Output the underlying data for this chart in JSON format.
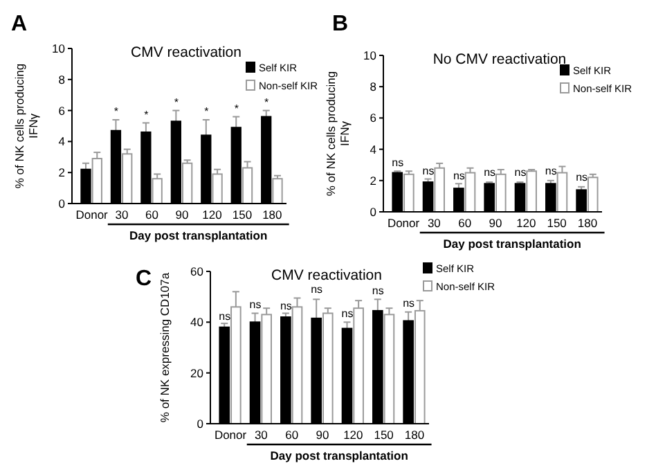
{
  "chart_data": [
    {
      "type": "bar",
      "title": "CMV  reactivation",
      "ylabel": "% of NK cells producing\nIFNγ",
      "xlabel": "Day post transplantation",
      "categories": [
        "Donor",
        "30",
        "60",
        "90",
        "120",
        "150",
        "180"
      ],
      "ylim": [
        0,
        10
      ],
      "yticks": [
        0,
        2,
        4,
        6,
        8,
        10
      ],
      "legend": "top right",
      "grid": false,
      "series": [
        {
          "name": "Self KIR",
          "color": "#000000",
          "values": [
            2.2,
            4.7,
            4.6,
            5.3,
            4.4,
            4.9,
            5.6
          ],
          "errors": [
            [
              2.2,
              2.6
            ],
            [
              4.7,
              5.4
            ],
            [
              4.6,
              5.2
            ],
            [
              5.3,
              6.0
            ],
            [
              4.4,
              5.4
            ],
            [
              4.9,
              5.6
            ],
            [
              5.6,
              6.0
            ]
          ]
        },
        {
          "name": "Non-self KIR",
          "color": "#ffffff",
          "values": [
            2.9,
            3.2,
            1.6,
            2.6,
            1.9,
            2.3,
            1.6
          ],
          "errors": [
            [
              2.9,
              3.3
            ],
            [
              3.2,
              3.5
            ],
            [
              1.6,
              1.9
            ],
            [
              2.6,
              2.8
            ],
            [
              1.9,
              2.2
            ],
            [
              2.3,
              2.7
            ],
            [
              1.6,
              1.8
            ]
          ]
        }
      ],
      "annotations": [
        "A",
        {
          "text": "*",
          "x": "30",
          "y": 5.7
        },
        {
          "text": "*",
          "x": "60",
          "y": 5.5
        },
        {
          "text": "*",
          "x": "90",
          "y": 6.3
        },
        {
          "text": "*",
          "x": "120",
          "y": 5.7
        },
        {
          "text": "*",
          "x": "150",
          "y": 5.9
        },
        {
          "text": "*",
          "x": "180",
          "y": 6.3
        }
      ]
    },
    {
      "type": "bar",
      "title": "No CMV  reactivation",
      "ylabel": "% of NK cells producing\nIFNγ",
      "xlabel": "Day post transplantation",
      "categories": [
        "Donor",
        "30",
        "60",
        "90",
        "120",
        "150",
        "180"
      ],
      "ylim": [
        0,
        10
      ],
      "yticks": [
        0,
        2,
        4,
        6,
        8,
        10
      ],
      "legend": "top right",
      "grid": false,
      "series": [
        {
          "name": "Self KIR",
          "color": "#000000",
          "values": [
            2.5,
            1.9,
            1.5,
            1.8,
            1.8,
            1.8,
            1.4
          ],
          "errors": [
            [
              2.5,
              2.6
            ],
            [
              1.9,
              2.1
            ],
            [
              1.5,
              1.8
            ],
            [
              1.8,
              1.9
            ],
            [
              1.8,
              1.9
            ],
            [
              1.8,
              2.0
            ],
            [
              1.4,
              1.6
            ]
          ]
        },
        {
          "name": "Non-self KIR",
          "color": "#ffffff",
          "values": [
            2.4,
            2.8,
            2.5,
            2.4,
            2.6,
            2.5,
            2.2
          ],
          "errors": [
            [
              2.4,
              2.6
            ],
            [
              2.8,
              3.1
            ],
            [
              2.5,
              2.8
            ],
            [
              2.4,
              2.7
            ],
            [
              2.6,
              2.7
            ],
            [
              2.5,
              2.9
            ],
            [
              2.2,
              2.4
            ]
          ]
        }
      ],
      "annotations": [
        "B",
        {
          "text": "ns",
          "x": "Donor",
          "y": 2.9
        },
        {
          "text": "ns",
          "x": "30",
          "y": 2.4
        },
        {
          "text": "ns",
          "x": "60",
          "y": 2.1
        },
        {
          "text": "ns",
          "x": "90",
          "y": 2.3
        },
        {
          "text": "ns",
          "x": "120",
          "y": 2.3
        },
        {
          "text": "ns",
          "x": "150",
          "y": 2.4
        },
        {
          "text": "ns",
          "x": "180",
          "y": 2.0
        }
      ]
    },
    {
      "type": "bar",
      "title": "CMV  reactivation",
      "ylabel": "% of NK expressing CD107a",
      "xlabel": "Day post transplantation",
      "categories": [
        "Donor",
        "30",
        "60",
        "90",
        "120",
        "150",
        "180"
      ],
      "ylim": [
        0,
        60
      ],
      "yticks": [
        0,
        20,
        40,
        60
      ],
      "legend": "top right",
      "grid": false,
      "series": [
        {
          "name": "Self KIR",
          "color": "#000000",
          "values": [
            38,
            40,
            42,
            41.5,
            37.5,
            44.5,
            40.5
          ],
          "errors": [
            [
              38,
              39.5
            ],
            [
              40,
              43.5
            ],
            [
              42,
              43.5
            ],
            [
              41.5,
              49
            ],
            [
              37.5,
              40
            ],
            [
              44.5,
              49
            ],
            [
              40.5,
              44
            ]
          ]
        },
        {
          "name": "Non-self KIR",
          "color": "#ffffff",
          "values": [
            46,
            43,
            46,
            43.5,
            45.5,
            43,
            44.5
          ],
          "errors": [
            [
              46,
              52
            ],
            [
              43,
              45.5
            ],
            [
              46,
              49.5
            ],
            [
              43.5,
              45.5
            ],
            [
              45.5,
              48.5
            ],
            [
              43,
              45.5
            ],
            [
              44.5,
              48.5
            ]
          ]
        }
      ],
      "annotations": [
        "C",
        {
          "text": "ns",
          "x": "Donor",
          "y": 41
        },
        {
          "text": "ns",
          "x": "30",
          "y": 45.5
        },
        {
          "text": "ns",
          "x": "60",
          "y": 45
        },
        {
          "text": "ns",
          "x": "90",
          "y": 51.5
        },
        {
          "text": "ns",
          "x": "120",
          "y": 42
        },
        {
          "text": "ns",
          "x": "150",
          "y": 51
        },
        {
          "text": "ns",
          "x": "180",
          "y": 46
        }
      ]
    }
  ]
}
